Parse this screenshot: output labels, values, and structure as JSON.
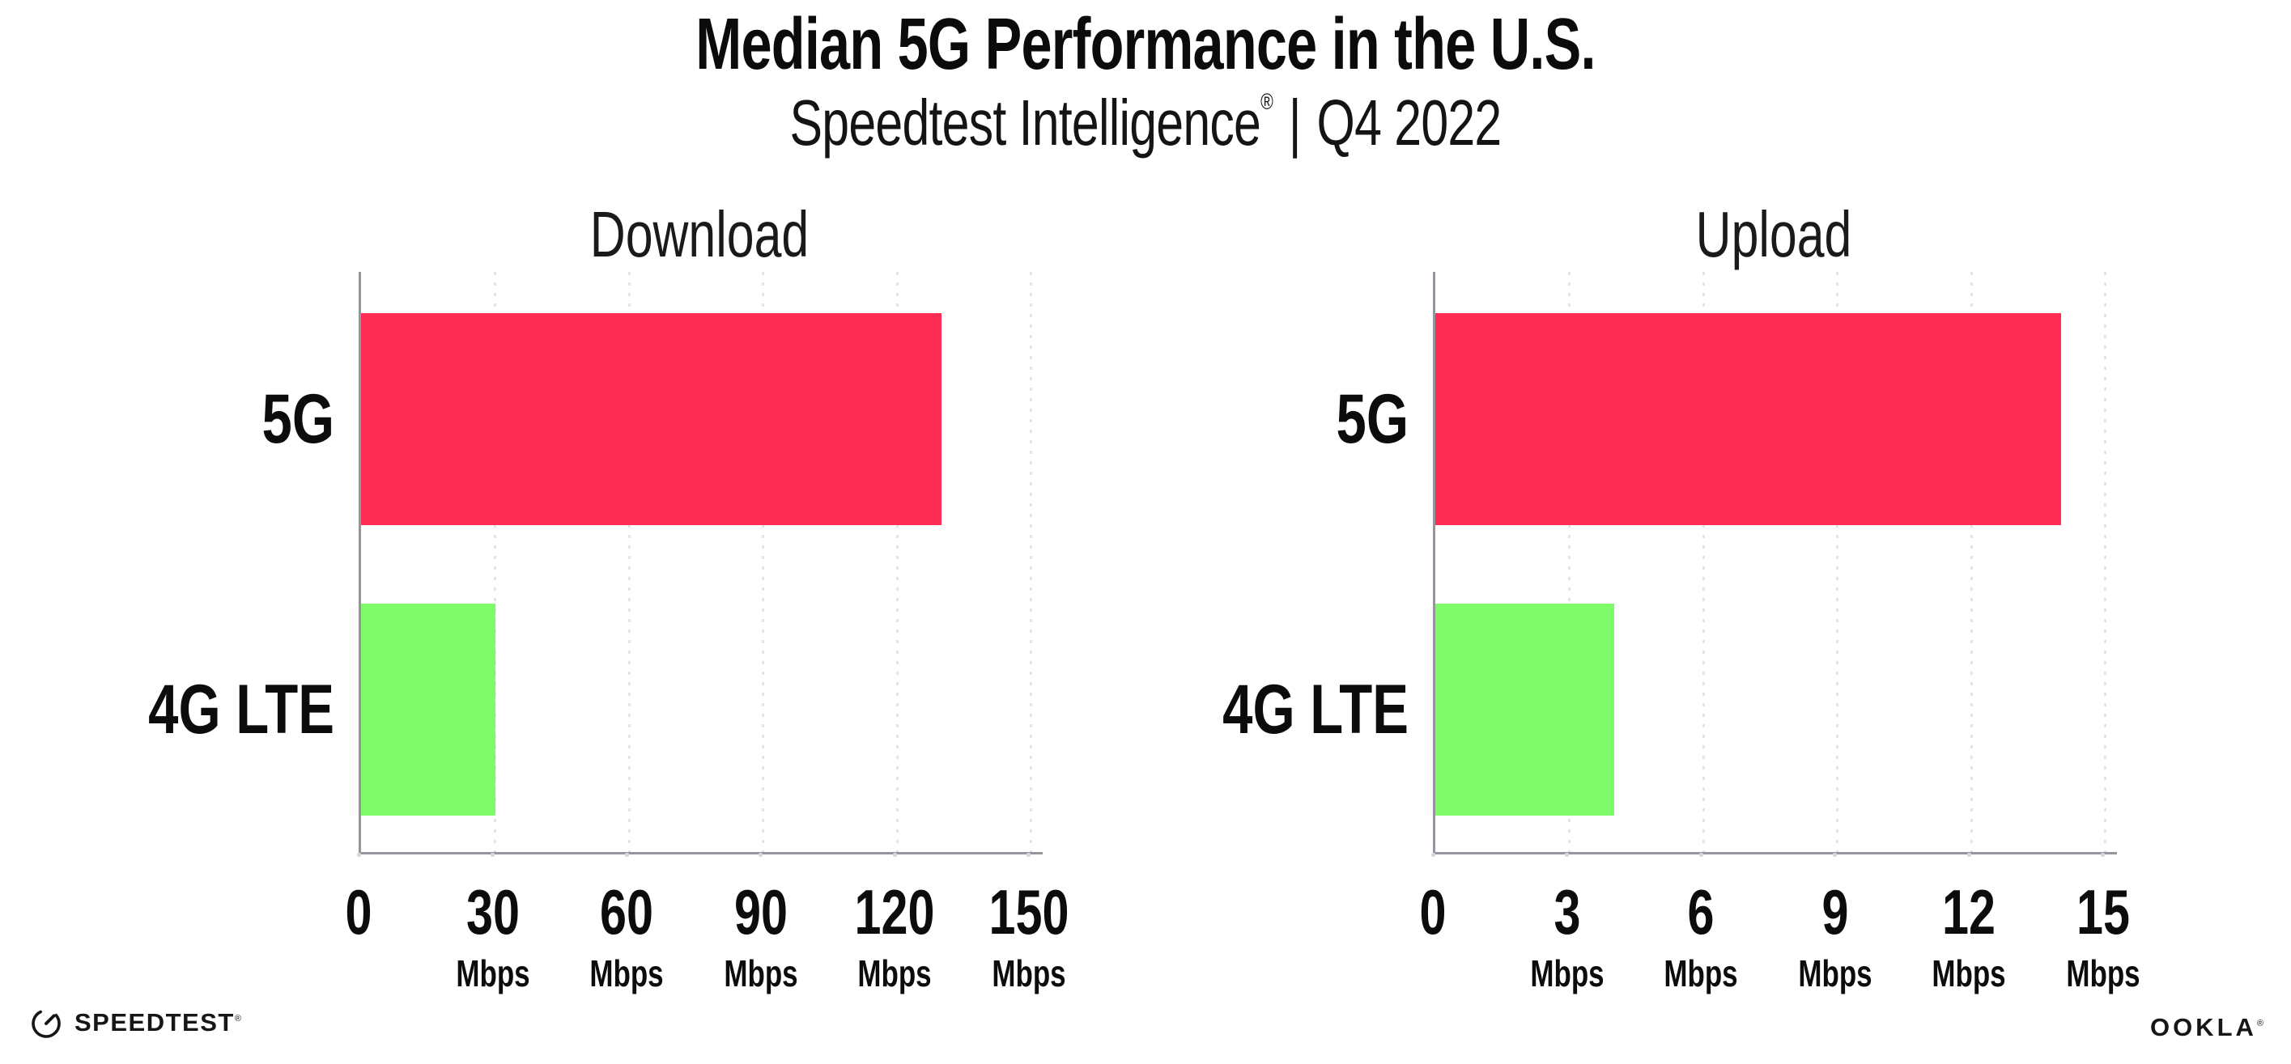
{
  "header": {
    "title": "Median 5G Performance in the U.S.",
    "subtitle_product": "Speedtest Intelligence",
    "subtitle_trademark": "®",
    "subtitle_separator": "|",
    "subtitle_period": "Q4 2022"
  },
  "chart_data": [
    {
      "type": "bar",
      "orientation": "horizontal",
      "title": "Download",
      "xlabel": "",
      "ylabel": "",
      "unit": "Mbps",
      "categories": [
        "5G",
        "4G LTE"
      ],
      "values": [
        130,
        30
      ],
      "xlim": [
        0,
        152.6
      ],
      "grid": "vertical-dotted",
      "legend": "none",
      "bar_colors": [
        "#FF2D56",
        "#7FFA68"
      ],
      "ticks": [
        {
          "value": 0,
          "label": "0",
          "unit": ""
        },
        {
          "value": 30,
          "label": "30",
          "unit": "Mbps"
        },
        {
          "value": 60,
          "label": "60",
          "unit": "Mbps"
        },
        {
          "value": 90,
          "label": "90",
          "unit": "Mbps"
        },
        {
          "value": 120,
          "label": "120",
          "unit": "Mbps"
        },
        {
          "value": 150,
          "label": "150",
          "unit": "Mbps"
        }
      ]
    },
    {
      "type": "bar",
      "orientation": "horizontal",
      "title": "Upload",
      "xlabel": "",
      "ylabel": "",
      "unit": "Mbps",
      "categories": [
        "5G",
        "4G LTE"
      ],
      "values": [
        14,
        4
      ],
      "xlim": [
        0,
        15.26
      ],
      "grid": "vertical-dotted",
      "legend": "none",
      "bar_colors": [
        "#FF2D56",
        "#7FFA68"
      ],
      "ticks": [
        {
          "value": 0,
          "label": "0",
          "unit": ""
        },
        {
          "value": 3,
          "label": "3",
          "unit": "Mbps"
        },
        {
          "value": 6,
          "label": "6",
          "unit": "Mbps"
        },
        {
          "value": 9,
          "label": "9",
          "unit": "Mbps"
        },
        {
          "value": 12,
          "label": "12",
          "unit": "Mbps"
        },
        {
          "value": 15,
          "label": "15",
          "unit": "Mbps"
        }
      ]
    }
  ],
  "footer": {
    "speedtest_label": "SPEEDTEST",
    "speedtest_trademark": "®",
    "ookla_label": "OOKLA",
    "ookla_trademark": "®"
  },
  "colors": {
    "bar_5g": "#FF2D56",
    "bar_4g_lte": "#7FFA68",
    "gridline": "#E3E3ED",
    "axis": "#95959D",
    "tick_dot": "#D6D6E0",
    "text": "#111111",
    "background": "#FFFFFF"
  }
}
